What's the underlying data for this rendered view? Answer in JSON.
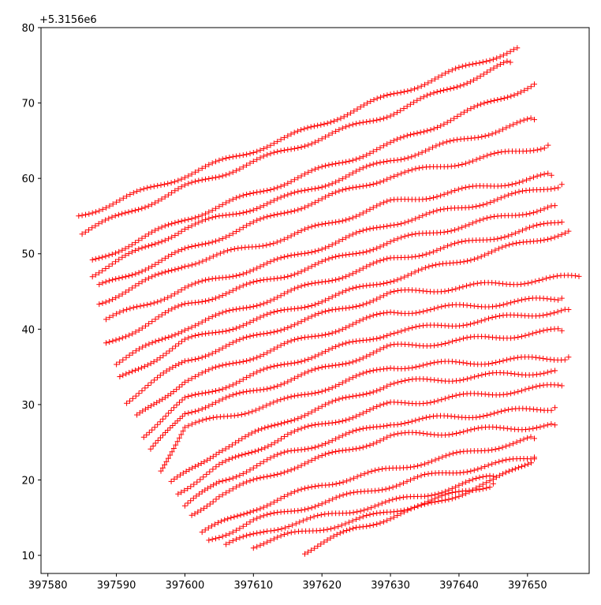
{
  "chart_data": {
    "type": "scatter",
    "title": "",
    "xlabel": "",
    "ylabel": "",
    "y_offset_label": "+5.3156e6",
    "xlim": [
      397579,
      397659
    ],
    "ylim": [
      7.6,
      80
    ],
    "x_ticks": [
      397580,
      397590,
      397600,
      397610,
      397620,
      397630,
      397640,
      397650
    ],
    "x_tick_labels": [
      "397580",
      "397590",
      "397600",
      "397610",
      "397620",
      "397630",
      "397640",
      "397650"
    ],
    "y_ticks": [
      10,
      20,
      30,
      40,
      50,
      60,
      70,
      80
    ],
    "y_tick_labels": [
      "10",
      "20",
      "30",
      "40",
      "50",
      "60",
      "70",
      "80"
    ],
    "marker": "+",
    "marker_color": "#ff0000",
    "grid": false,
    "series": [
      {
        "x": [
          397584.5,
          397600,
          397615,
          397630,
          397648.5
        ],
        "y": [
          55.0,
          60.4,
          65.4,
          71.0,
          77.3
        ]
      },
      {
        "x": [
          397585,
          397600,
          397615,
          397630,
          397647.5
        ],
        "y": [
          52.8,
          58.8,
          63.8,
          68.6,
          75.4
        ]
      },
      {
        "x": [
          397586.5,
          397600,
          397615,
          397630,
          397651
        ],
        "y": [
          49.0,
          54.6,
          59.6,
          64.5,
          72.5
        ]
      },
      {
        "x": [
          397586.5,
          397600,
          397615,
          397630,
          397651
        ],
        "y": [
          47.3,
          53.4,
          57.5,
          62.4,
          67.8
        ]
      },
      {
        "x": [
          397587.5,
          397600,
          397615,
          397630,
          397653
        ],
        "y": [
          45.6,
          50.4,
          55.7,
          60.3,
          64.4
        ]
      },
      {
        "x": [
          397587.5,
          397600,
          397615,
          397630,
          397653.5
        ],
        "y": [
          43.5,
          48.6,
          52.2,
          56.8,
          60.4
        ]
      },
      {
        "x": [
          397588.5,
          397600,
          397615,
          397630,
          397655
        ],
        "y": [
          41.2,
          45.4,
          49.4,
          54.0,
          59.2
        ]
      },
      {
        "x": [
          397588.5,
          397600,
          397615,
          397630,
          397654
        ],
        "y": [
          38.0,
          43.2,
          47.3,
          51.6,
          56.4
        ]
      },
      {
        "x": [
          397590,
          397600,
          397615,
          397630,
          397655
        ],
        "y": [
          35.5,
          40.2,
          44.8,
          49.2,
          54.2
        ]
      },
      {
        "x": [
          397590.5,
          397600,
          397615,
          397630,
          397656
        ],
        "y": [
          33.4,
          38.4,
          42.5,
          46.6,
          53.0
        ]
      },
      {
        "x": [
          397591.5,
          397600,
          397615,
          397630,
          397657.5
        ],
        "y": [
          30.5,
          35.8,
          40.5,
          44.7,
          47.0
        ]
      },
      {
        "x": [
          397593,
          397600,
          397615,
          397630,
          397655
        ],
        "y": [
          28.3,
          33.2,
          38.0,
          42.2,
          44.1
        ]
      },
      {
        "x": [
          397594,
          397600,
          397615,
          397630,
          397656
        ],
        "y": [
          26.0,
          30.6,
          35.5,
          39.6,
          42.6
        ]
      },
      {
        "x": [
          397595,
          397600,
          397615,
          397630,
          397655
        ],
        "y": [
          23.8,
          29.0,
          33.2,
          37.6,
          39.8
        ]
      },
      {
        "x": [
          397596.5,
          397600,
          397615,
          397630,
          397656
        ],
        "y": [
          21.5,
          27.0,
          30.6,
          35.0,
          36.3
        ]
      },
      {
        "x": [
          397598,
          397605,
          397615,
          397630,
          397654
        ],
        "y": [
          19.5,
          24.0,
          28.0,
          32.8,
          34.5
        ]
      },
      {
        "x": [
          397599,
          397605,
          397615,
          397630,
          397655
        ],
        "y": [
          18.4,
          21.8,
          26.0,
          30.0,
          32.5
        ]
      },
      {
        "x": [
          397600,
          397605,
          397615,
          397630,
          397654
        ],
        "y": [
          16.4,
          19.8,
          23.6,
          27.6,
          29.6
        ]
      },
      {
        "x": [
          397601,
          397605,
          397615,
          397630,
          397654
        ],
        "y": [
          15.4,
          18.0,
          21.5,
          25.8,
          27.3
        ]
      },
      {
        "x": [
          397602.5,
          397610,
          397620,
          397635,
          397651
        ],
        "y": [
          13.0,
          16.2,
          19.4,
          22.4,
          25.5
        ]
      },
      {
        "x": [
          397603.5,
          397610,
          397620,
          397635,
          397651
        ],
        "y": [
          12.0,
          14.6,
          17.0,
          20.4,
          23.0
        ]
      },
      {
        "x": [
          397606,
          397612,
          397622,
          397635,
          397645
        ],
        "y": [
          11.3,
          13.4,
          15.5,
          18.0,
          20.5
        ]
      },
      {
        "x": [
          397610,
          397615,
          397625,
          397635,
          397645
        ],
        "y": [
          11.3,
          12.6,
          14.6,
          17.0,
          19.5
        ]
      },
      {
        "x": [
          397617.5,
          397625,
          397635,
          397645,
          397651
        ],
        "y": [
          10.5,
          13.6,
          16.5,
          19.8,
          22.8
        ]
      }
    ]
  }
}
